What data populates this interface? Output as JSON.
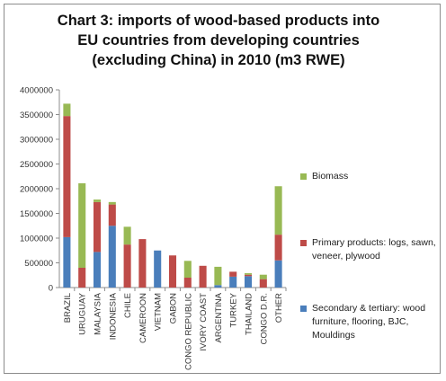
{
  "chart_data": {
    "type": "bar",
    "stacked": true,
    "title_lines": [
      "Chart 3: imports of wood-based products into",
      "EU countries from developing countries",
      "(excluding China) in 2010 (m3 RWE)"
    ],
    "categories": [
      "BRAZIL",
      "URUGUAY",
      "MALAYSIA",
      "INDONESIA",
      "CHILE",
      "CAMEROON",
      "VIETNAM",
      "GABON",
      "CONGO REPUBLIC",
      "IVORY COAST",
      "ARGENTINA",
      "TURKEY",
      "THAILAND",
      "CONGO D.R.",
      "OTHER"
    ],
    "series": [
      {
        "name": "Secondary & tertiary: wood furniture, flooring, BJC, Mouldings",
        "color": "#4a7ebb",
        "values": [
          1020000,
          0,
          720000,
          1250000,
          0,
          0,
          750000,
          0,
          0,
          0,
          50000,
          220000,
          230000,
          0,
          550000
        ]
      },
      {
        "name": "Primary products: logs, sawn, veneer, plywood",
        "color": "#be4b48",
        "values": [
          2450000,
          400000,
          1010000,
          430000,
          870000,
          980000,
          0,
          650000,
          200000,
          440000,
          0,
          100000,
          30000,
          170000,
          520000
        ]
      },
      {
        "name": "Biomass",
        "color": "#98b954",
        "values": [
          250000,
          1710000,
          50000,
          50000,
          360000,
          0,
          0,
          0,
          340000,
          0,
          370000,
          0,
          30000,
          90000,
          980000
        ]
      }
    ],
    "yticks": [
      "0",
      "500000",
      "1000000",
      "1500000",
      "2000000",
      "2500000",
      "3000000",
      "3500000",
      "4000000"
    ],
    "ylim": [
      0,
      4000000
    ],
    "legend_order": [
      2,
      1,
      0
    ],
    "legend_position": "right"
  }
}
